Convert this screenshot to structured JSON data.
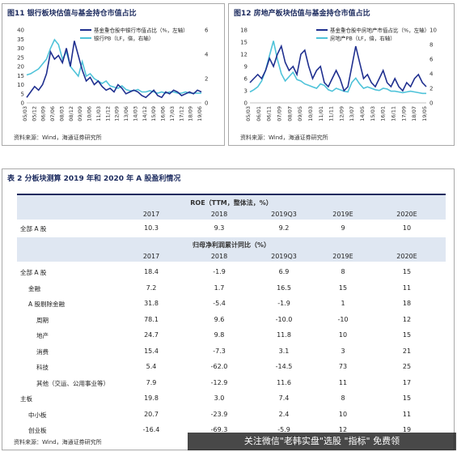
{
  "figure11": {
    "title": "图11 银行板块估值与基金持仓市值占比",
    "source": "资料来源：Wind，海通证券研究所",
    "legend": [
      "基金重仓股中银行市值占比（%，左轴）",
      "银行PB（LF，倍，右轴）"
    ],
    "x_ticks": [
      "05/03",
      "05/12",
      "06/09",
      "07/06",
      "08/03",
      "08/12",
      "09/09",
      "10/06",
      "11/03",
      "11/12",
      "12/09",
      "13/06",
      "14/03",
      "14/12",
      "15/09",
      "16/06",
      "17/03",
      "17/12",
      "18/09",
      "19/06"
    ],
    "left_ticks": [
      "0",
      "5",
      "10",
      "15",
      "20",
      "25",
      "30",
      "35",
      "40"
    ],
    "right_ticks": [
      "0",
      "2",
      "4",
      "6"
    ]
  },
  "figure12": {
    "title": "图12 房地产板块估值与基金持仓市值占比",
    "source": "资料来源：Wind，海通证券研究所",
    "legend": [
      "基金重仓股中房地产市值占比（%，左轴）",
      "房地产PB（LF，倍，右轴）"
    ],
    "x_ticks": [
      "05/03",
      "06/01",
      "06/11",
      "07/09",
      "08/07",
      "09/05",
      "10/03",
      "11/01",
      "11/11",
      "12/09",
      "13/07",
      "14/05",
      "15/03",
      "16/01",
      "16/11",
      "17/09",
      "18/07",
      "19/05"
    ],
    "left_ticks": [
      "0",
      "3",
      "6",
      "9",
      "12",
      "15",
      "18"
    ],
    "right_ticks": [
      "0",
      "2",
      "4",
      "6",
      "8",
      "10"
    ]
  },
  "table": {
    "title": "表 2 分板块测算 2019 年和 2020 年 A 股盈利情况",
    "roe_header": "ROE（TTM，整体法，%）",
    "growth_header": "归母净利润累计同比（%）",
    "columns": [
      "2017",
      "2018",
      "2019Q3",
      "2019E",
      "2020E"
    ],
    "roe_row": {
      "label": "全部 A 股",
      "values": [
        "10.3",
        "9.3",
        "9.2",
        "9",
        "10"
      ]
    },
    "rows": [
      {
        "label": "全部 A 股",
        "values": [
          "18.4",
          "-1.9",
          "6.9",
          "8",
          "15"
        ]
      },
      {
        "label": "金融",
        "values": [
          "7.2",
          "1.7",
          "16.5",
          "15",
          "11"
        ]
      },
      {
        "label": "A 股剔除金融",
        "values": [
          "31.8",
          "-5.4",
          "-1.9",
          "1",
          "18"
        ]
      },
      {
        "label": "周期",
        "values": [
          "78.1",
          "9.6",
          "-10.0",
          "-10",
          "12"
        ]
      },
      {
        "label": "地产",
        "values": [
          "24.7",
          "9.8",
          "11.8",
          "10",
          "15"
        ]
      },
      {
        "label": "消费",
        "values": [
          "15.4",
          "-7.3",
          "3.1",
          "3",
          "21"
        ]
      },
      {
        "label": "科技",
        "values": [
          "5.4",
          "-62.0",
          "-14.5",
          "73",
          "25"
        ]
      },
      {
        "label": "其他（交运、公用事业等）",
        "values": [
          "7.9",
          "-12.9",
          "11.6",
          "11",
          "17"
        ]
      },
      {
        "label": "主板",
        "values": [
          "19.8",
          "3.0",
          "7.4",
          "8",
          "15"
        ]
      },
      {
        "label": "中小板",
        "values": [
          "20.7",
          "-23.9",
          "2.4",
          "10",
          "11"
        ]
      },
      {
        "label": "创业板",
        "values": [
          "-16.4",
          "-69.3",
          "-5.9",
          "12",
          "19"
        ]
      }
    ],
    "source": "资料来源：Wind，海通证券研究所"
  },
  "watermark": "关注微信\"老韩实盘\"选股 \"指标\" 免费领",
  "colors": {
    "dark_series": "#1f2f8f",
    "light_series": "#4fc3d9",
    "band": "#dfe7f2",
    "title": "#1b2a5e"
  }
}
